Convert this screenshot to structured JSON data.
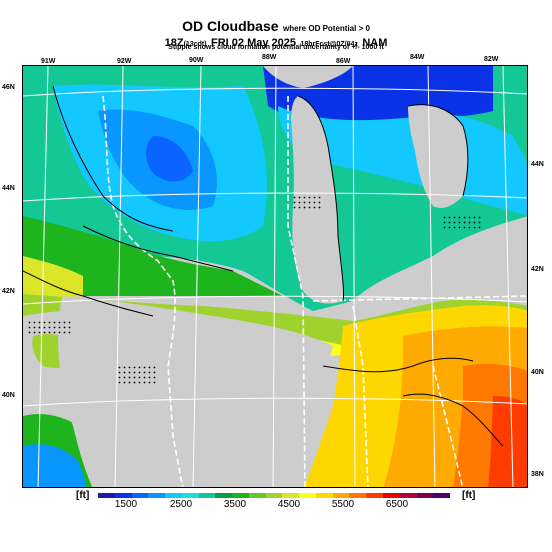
{
  "header": {
    "title": "OD Cloudbase",
    "title_note": "where OD Potential > 0",
    "time_main_a": "18Z",
    "time_small_a": "(13cdt)",
    "time_main_b": "FRI 02 May 2025",
    "time_small_b": "18hrFcst@0Z/04z",
    "time_main_c": "NAM",
    "stipple_note": "Stipple shows cloud formation potential uncertainty of +/- 1000 ft"
  },
  "map": {
    "region": "Upper Midwest / Great Lakes",
    "field": "OD cloudbase height",
    "units": "ft",
    "land_no_data_color": "#cdcdcd",
    "lake_color": "#cdcdcd",
    "top_lon_labels": [
      "91W",
      "92W",
      "90W",
      "88W",
      "86W",
      "84W",
      "82W"
    ],
    "left_lat_labels": [
      "46N",
      "44N",
      "42N",
      "40N"
    ],
    "right_lat_labels": [
      "44N",
      "42N",
      "40N",
      "38N"
    ]
  },
  "colorbar": {
    "unit_left": "[ft]",
    "unit_right": "[ft]",
    "ticks": [
      "1500",
      "2500",
      "3500",
      "4500",
      "5500",
      "6500"
    ],
    "colors": [
      "#1c1ca8",
      "#0a32e6",
      "#0a64ff",
      "#0a96ff",
      "#12c8ff",
      "#14e0e0",
      "#14c896",
      "#00a046",
      "#1eb41e",
      "#64c828",
      "#a0d22d",
      "#dce628",
      "#ffff14",
      "#ffd700",
      "#ffaa00",
      "#ff7800",
      "#ff3c00",
      "#e60000",
      "#b4003c",
      "#780050",
      "#50006e"
    ]
  }
}
